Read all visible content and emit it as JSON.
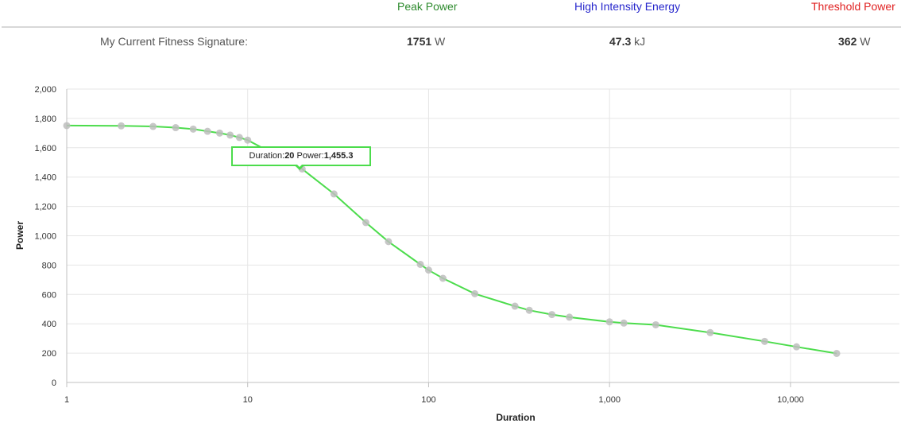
{
  "header": {
    "peak_power_label": "Peak Power",
    "high_intensity_energy_label": "High Intensity Energy",
    "threshold_power_label": "Threshold Power",
    "peak_power_color": "#2e8b2e",
    "high_intensity_energy_color": "#2626cc",
    "threshold_power_color": "#e02020"
  },
  "signature": {
    "label": "My Current Fitness Signature:",
    "peak_power_value": "1751",
    "peak_power_unit": "W",
    "high_intensity_energy_value": "47.3",
    "high_intensity_energy_unit": "kJ",
    "threshold_power_value": "362",
    "threshold_power_unit": "W"
  },
  "tooltip": {
    "duration_label": "Duration:",
    "duration_value": "20",
    "power_label": "Power:",
    "power_value": "1,455.3"
  },
  "chart_data": {
    "type": "line",
    "xscale": "log",
    "xlabel": "Duration",
    "ylabel": "Power",
    "xlim": [
      1,
      40000
    ],
    "ylim": [
      0,
      2000
    ],
    "x_ticks": [
      1,
      10,
      100,
      1000,
      10000
    ],
    "x_tick_labels": [
      "1",
      "10",
      "100",
      "1,000",
      "10,000"
    ],
    "y_ticks": [
      0,
      200,
      400,
      600,
      800,
      1000,
      1200,
      1400,
      1600,
      1800,
      2000
    ],
    "y_tick_labels": [
      "0",
      "200",
      "400",
      "600",
      "800",
      "1,000",
      "1,200",
      "1,400",
      "1,600",
      "1,800",
      "2,000"
    ],
    "grid": true,
    "line_color": "#4cdc4c",
    "point_color": "#bdbdbd",
    "series": [
      {
        "line": [
          [
            1,
            1751
          ],
          [
            2,
            1749
          ],
          [
            3,
            1745
          ],
          [
            4,
            1737
          ],
          [
            5,
            1727
          ],
          [
            6,
            1712
          ],
          [
            7,
            1700
          ],
          [
            8,
            1686
          ],
          [
            9,
            1670
          ],
          [
            10,
            1652
          ],
          [
            20,
            1455.3
          ],
          [
            30,
            1285
          ],
          [
            45,
            1090
          ],
          [
            60,
            960
          ],
          [
            90,
            805
          ],
          [
            100,
            766
          ],
          [
            120,
            710
          ],
          [
            180,
            605
          ],
          [
            300,
            520
          ],
          [
            360,
            492
          ],
          [
            480,
            463
          ],
          [
            600,
            445
          ],
          [
            1000,
            413
          ],
          [
            1200,
            405
          ],
          [
            1800,
            393
          ],
          [
            3600,
            340
          ],
          [
            7200,
            280
          ],
          [
            10800,
            243
          ],
          [
            18000,
            198
          ]
        ],
        "points": [
          [
            1,
            1751
          ],
          [
            2,
            1749
          ],
          [
            3,
            1745
          ],
          [
            4,
            1737
          ],
          [
            5,
            1727
          ],
          [
            6,
            1712
          ],
          [
            7,
            1700
          ],
          [
            8,
            1686
          ],
          [
            9,
            1670
          ],
          [
            10,
            1652
          ],
          [
            20,
            1455.3
          ],
          [
            30,
            1285
          ],
          [
            45,
            1090
          ],
          [
            60,
            960
          ],
          [
            90,
            805
          ],
          [
            100,
            766
          ],
          [
            120,
            710
          ],
          [
            180,
            605
          ],
          [
            300,
            520
          ],
          [
            360,
            492
          ],
          [
            480,
            463
          ],
          [
            600,
            445
          ],
          [
            1000,
            413
          ],
          [
            1200,
            405
          ],
          [
            1800,
            393
          ],
          [
            3600,
            340
          ],
          [
            7200,
            280
          ],
          [
            10800,
            243
          ],
          [
            18000,
            198
          ]
        ]
      }
    ]
  }
}
